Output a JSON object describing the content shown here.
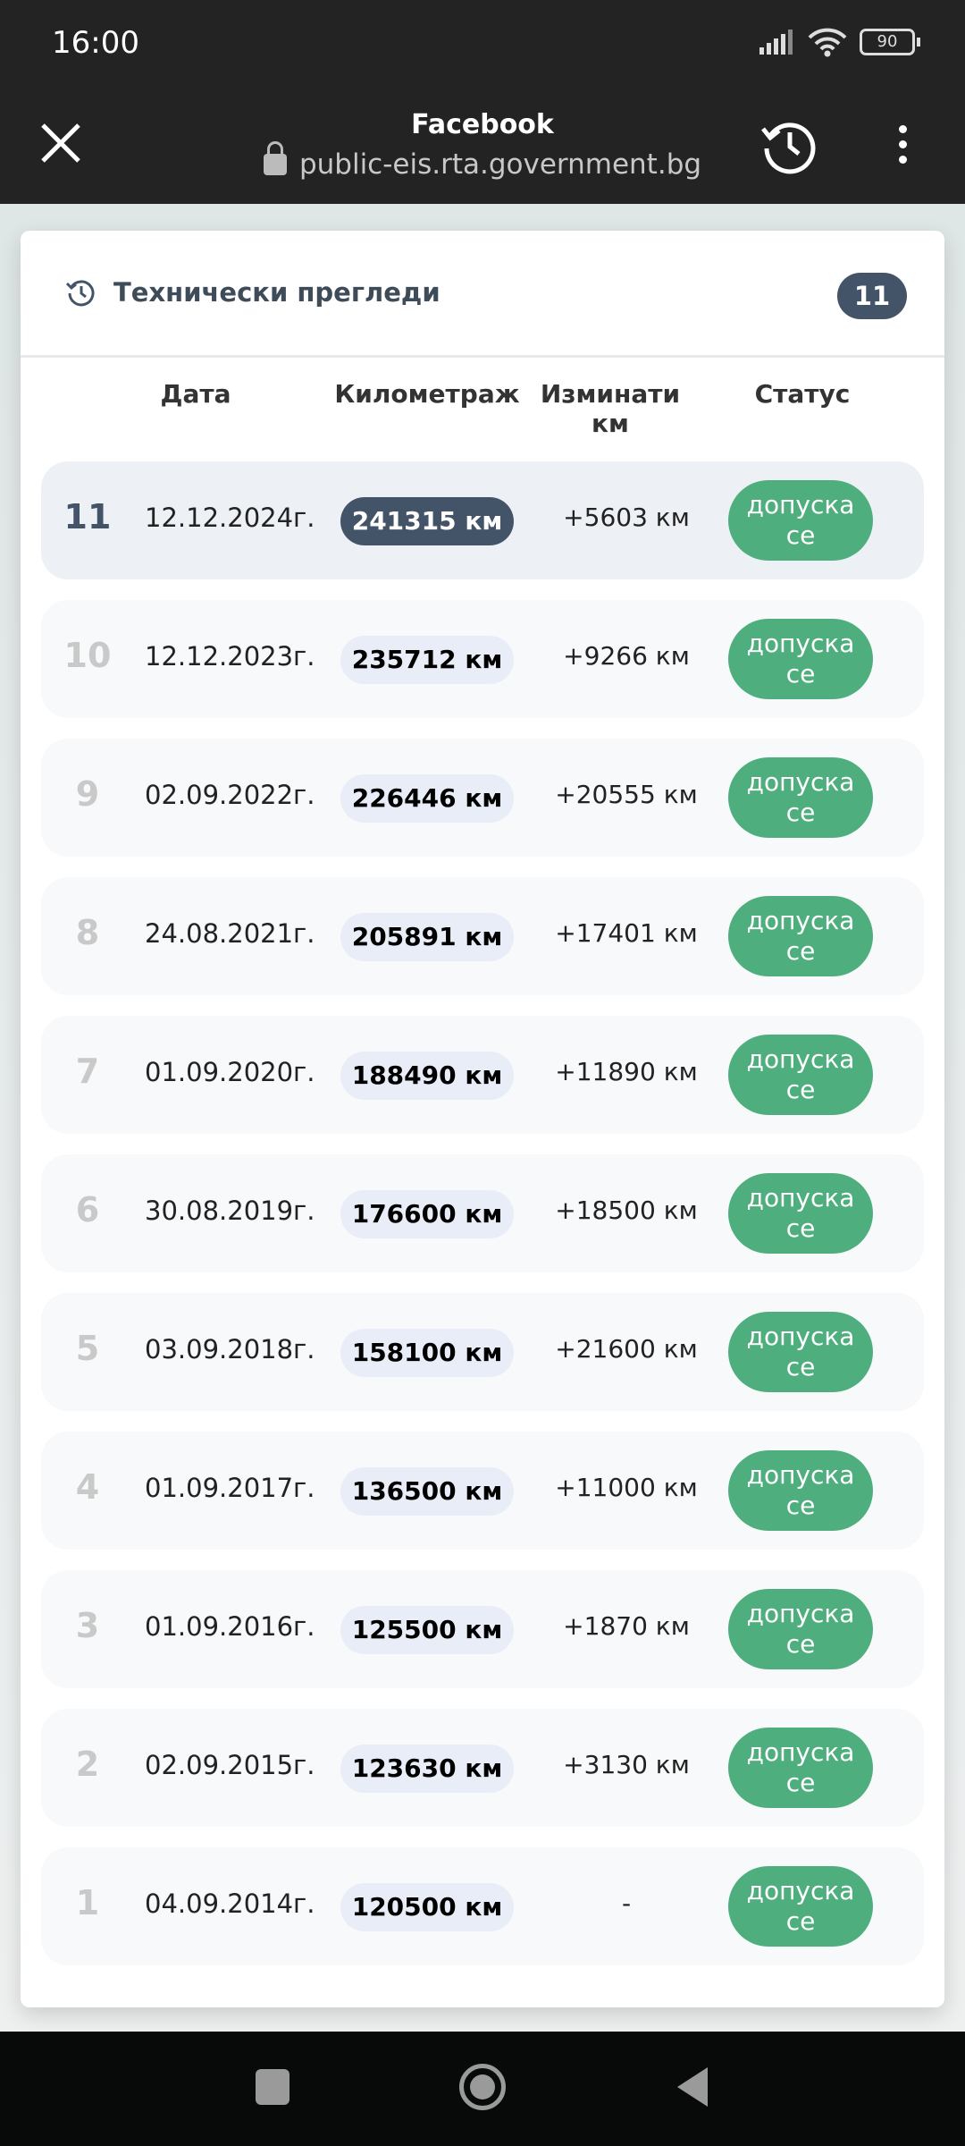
{
  "status_bar": {
    "time": "16:00",
    "battery": "90"
  },
  "browser": {
    "title": "Facebook",
    "url": "public-eis.rta.government.bg"
  },
  "card": {
    "title": "Технически прегледи",
    "count": "11",
    "columns": [
      "Дата",
      "Километраж",
      "Изминати км",
      "Статус"
    ],
    "rows": [
      {
        "n": "11",
        "date": "12.12.2024г.",
        "km": "241315 км",
        "diff": "+5603 км",
        "status": "допуска се"
      },
      {
        "n": "10",
        "date": "12.12.2023г.",
        "km": "235712 км",
        "diff": "+9266 км",
        "status": "допуска се"
      },
      {
        "n": "9",
        "date": "02.09.2022г.",
        "km": "226446 км",
        "diff": "+20555 км",
        "status": "допуска се"
      },
      {
        "n": "8",
        "date": "24.08.2021г.",
        "km": "205891 км",
        "diff": "+17401 км",
        "status": "допуска се"
      },
      {
        "n": "7",
        "date": "01.09.2020г.",
        "km": "188490 км",
        "diff": "+11890 км",
        "status": "допуска се"
      },
      {
        "n": "6",
        "date": "30.08.2019г.",
        "km": "176600 км",
        "diff": "+18500 км",
        "status": "допуска се"
      },
      {
        "n": "5",
        "date": "03.09.2018г.",
        "km": "158100 км",
        "diff": "+21600 км",
        "status": "допуска се"
      },
      {
        "n": "4",
        "date": "01.09.2017г.",
        "km": "136500 км",
        "diff": "+11000 км",
        "status": "допуска се"
      },
      {
        "n": "3",
        "date": "01.09.2016г.",
        "km": "125500 км",
        "diff": "+1870 км",
        "status": "допуска се"
      },
      {
        "n": "2",
        "date": "02.09.2015г.",
        "km": "123630 км",
        "diff": "+3130 км",
        "status": "допуска се"
      },
      {
        "n": "1",
        "date": "04.09.2014г.",
        "km": "120500 км",
        "diff": "-",
        "status": "допуска се"
      }
    ]
  },
  "colors": {
    "accent": "#445468",
    "status_ok": "#4eae7e"
  }
}
